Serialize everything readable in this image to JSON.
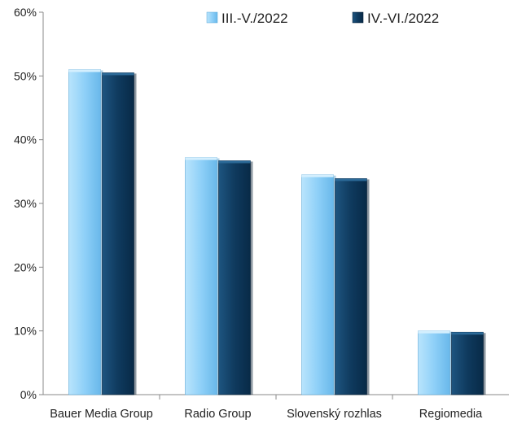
{
  "chart_data": {
    "type": "bar",
    "categories": [
      "Bauer Media Group",
      "Radio Group",
      "Slovenský rozhlas",
      "Regiomedia"
    ],
    "series": [
      {
        "name": "III.-V./2022",
        "values": [
          0.51,
          0.372,
          0.345,
          0.1
        ],
        "color": "#8fd0f8"
      },
      {
        "name": "IV.-VI./2022",
        "values": [
          0.505,
          0.367,
          0.339,
          0.098
        ],
        "color": "#0f3a5e"
      }
    ],
    "yticks": [
      "0%",
      "10%",
      "20%",
      "30%",
      "40%",
      "50%",
      "60%"
    ],
    "ylim": [
      0,
      0.6
    ],
    "grid": false,
    "legend_position": "top-right",
    "title": "",
    "xlabel": "",
    "ylabel": ""
  }
}
